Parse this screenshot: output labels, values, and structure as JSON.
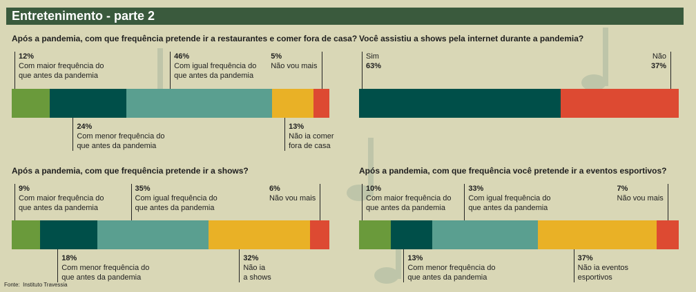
{
  "header": {
    "title": "Entretenimento - parte 2"
  },
  "chart_data": [
    {
      "type": "stacked-bar",
      "title": "Após a pandemia, com que frequência pretende ir a restaurantes e comer fora de casa?",
      "categories": [
        "Com maior frequência do\nque antes da pandemia",
        "Com menor frequência do\nque antes da pandemia",
        "Com igual frequência do\nque antes da pandemia",
        "Não ia comer\nfora de casa",
        "Não vou mais"
      ],
      "values": [
        12,
        24,
        46,
        13,
        5
      ],
      "value_labels": [
        "12%",
        "24%",
        "46%",
        "13%",
        "5%"
      ],
      "colors": [
        "#6a9a3b",
        "#004f49",
        "#5a9f90",
        "#e9b126",
        "#dd4a32"
      ]
    },
    {
      "type": "stacked-bar",
      "title": "Você assistiu a shows pela internet durante a pandemia?",
      "categories": [
        "Sim",
        "Não"
      ],
      "values": [
        63,
        37
      ],
      "value_labels": [
        "63%",
        "37%"
      ],
      "colors": [
        "#004f49",
        "#dd4a32"
      ]
    },
    {
      "type": "stacked-bar",
      "title": "Após a pandemia, com que frequência pretende ir a shows?",
      "categories": [
        "Com maior frequência do\nque antes da pandemia",
        "Com menor frequência do\nque antes da pandemia",
        "Com igual frequência do\nque antes da pandemia",
        "Não ia\na shows",
        "Não vou mais"
      ],
      "values": [
        9,
        18,
        35,
        32,
        6
      ],
      "value_labels": [
        "9%",
        "18%",
        "35%",
        "32%",
        "6%"
      ],
      "colors": [
        "#6a9a3b",
        "#004f49",
        "#5a9f90",
        "#e9b126",
        "#dd4a32"
      ]
    },
    {
      "type": "stacked-bar",
      "title": "Após a pandemia, com que frequência você pretende ir a eventos esportivos?",
      "categories": [
        "Com maior frequência do\nque antes da pandemia",
        "Com menor frequência do\nque antes da pandemia",
        "Com igual frequência do\nque antes da pandemia",
        "Não ia eventos\nesportivos",
        "Não vou mais"
      ],
      "values": [
        10,
        13,
        33,
        37,
        7
      ],
      "value_labels": [
        "10%",
        "13%",
        "33%",
        "37%",
        "7%"
      ],
      "colors": [
        "#6a9a3b",
        "#004f49",
        "#5a9f90",
        "#e9b126",
        "#dd4a32"
      ]
    }
  ],
  "source": "Fonte:  Instituto Travessia"
}
